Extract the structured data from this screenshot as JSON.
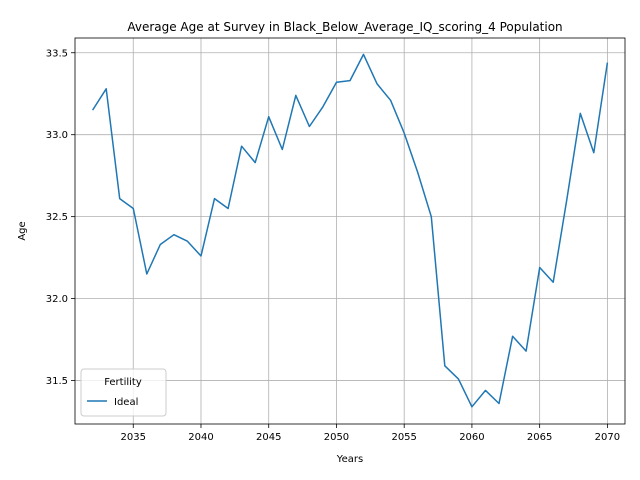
{
  "chart_data": {
    "type": "line",
    "title": "Average Age at Survey in Black_Below_Average_IQ_scoring_4 Population",
    "xlabel": "Years",
    "ylabel": "Age",
    "xlim": [
      2030.7,
      2071.3
    ],
    "ylim": [
      31.235,
      33.59
    ],
    "xticks": [
      2035,
      2040,
      2045,
      2050,
      2055,
      2060,
      2065,
      2070
    ],
    "yticks": [
      31.5,
      32.0,
      32.5,
      33.0,
      33.5
    ],
    "grid": true,
    "legend": {
      "title": "Fertility",
      "position": "lower-left"
    },
    "series": [
      {
        "name": "Ideal",
        "color": "#1f77b4",
        "x": [
          2032,
          2033,
          2034,
          2035,
          2036,
          2037,
          2038,
          2039,
          2040,
          2041,
          2042,
          2043,
          2044,
          2045,
          2046,
          2047,
          2048,
          2049,
          2050,
          2051,
          2052,
          2053,
          2054,
          2055,
          2056,
          2057,
          2058,
          2059,
          2060,
          2061,
          2062,
          2063,
          2064,
          2065,
          2066,
          2067,
          2068,
          2069,
          2070
        ],
        "y": [
          33.15,
          33.28,
          32.61,
          32.55,
          32.15,
          32.33,
          32.39,
          32.35,
          32.26,
          32.61,
          32.55,
          32.93,
          32.83,
          33.11,
          32.91,
          33.24,
          33.05,
          33.17,
          33.32,
          33.33,
          33.49,
          33.31,
          33.21,
          33.01,
          32.77,
          32.5,
          31.59,
          31.51,
          31.34,
          31.44,
          31.36,
          31.77,
          31.68,
          32.19,
          32.1,
          32.6,
          33.13,
          32.89,
          33.44
        ]
      }
    ]
  }
}
